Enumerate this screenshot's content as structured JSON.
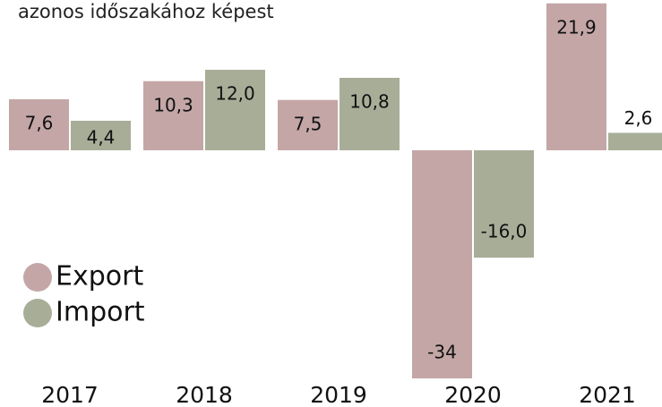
{
  "chart_data": {
    "type": "bar",
    "subtitle": "azonos időszakához képest",
    "categories": [
      "2017",
      "2018",
      "2019",
      "2020",
      "2021"
    ],
    "series": [
      {
        "name": "Export",
        "color": "#c4a6a6",
        "values": [
          7.6,
          10.3,
          7.5,
          -34,
          21.9
        ],
        "value_labels": [
          "7,6",
          "10,3",
          "7,5",
          "-34",
          "21,9"
        ]
      },
      {
        "name": "Import",
        "color": "#a8ad98",
        "values": [
          4.4,
          12.0,
          10.8,
          -16.0,
          2.6
        ],
        "value_labels": [
          "4,4",
          "12,0",
          "10,8",
          "-16,0",
          "2,6"
        ]
      }
    ],
    "legend": "lower-left"
  }
}
